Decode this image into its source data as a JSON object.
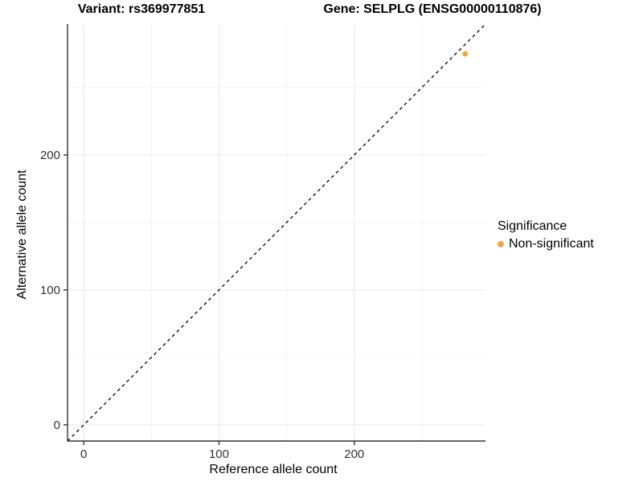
{
  "titles": {
    "variant": "Variant: rs369977851",
    "gene": "Gene: SELPLG (ENSG00000110876)"
  },
  "chart_data": {
    "type": "scatter",
    "title_left": "Variant: rs369977851",
    "title_right": "Gene: SELPLG (ENSG00000110876)",
    "xlabel": "Reference allele count",
    "ylabel": "Alternative allele count",
    "xlim": [
      -12,
      297
    ],
    "ylim": [
      -12,
      297
    ],
    "x_ticks": [
      0,
      100,
      200
    ],
    "y_ticks": [
      0,
      100,
      200
    ],
    "x_minor_ticks": [
      50,
      150,
      250
    ],
    "y_minor_ticks": [
      50,
      150,
      250
    ],
    "grid": "on",
    "identity_line": {
      "slope": 1,
      "intercept": 0,
      "style": "dashed"
    },
    "points": [
      {
        "x": 282,
        "y": 275,
        "series": "Non-significant"
      }
    ],
    "legend": {
      "title": "Significance",
      "position": "right",
      "entries": [
        {
          "label": "Non-significant",
          "color": "#F7A63C"
        }
      ]
    }
  },
  "colors": {
    "point": "#F7A63C",
    "grid_major": "#ECECEC",
    "grid_minor": "#F4F4F4",
    "axis_line": "#333333",
    "tick_label": "#333333",
    "identity_line": "#000000",
    "background": "#FFFFFF"
  }
}
